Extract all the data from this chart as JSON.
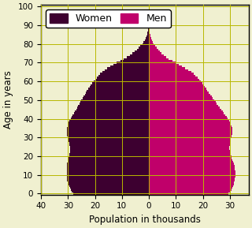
{
  "xlabel": "Population in thousands",
  "ylabel": "Age in years",
  "women_color": "#3d0030",
  "men_color": "#c0006a",
  "xlim": [
    -40,
    37
  ],
  "ylim": [
    -0.5,
    101
  ],
  "xticks": [
    -40,
    -30,
    -20,
    -10,
    0,
    10,
    20,
    30
  ],
  "xticklabels": [
    "40",
    "30",
    "20",
    "10",
    "0",
    "10",
    "20",
    "30"
  ],
  "yticks": [
    0,
    10,
    20,
    30,
    40,
    50,
    60,
    70,
    80,
    90,
    100
  ],
  "grid_color": "#b8b800",
  "background_color": "#f0f0d0",
  "legend_fontsize": 9,
  "women": [
    28.0,
    28.5,
    29.0,
    29.3,
    29.6,
    29.9,
    30.1,
    30.3,
    30.4,
    30.5,
    30.5,
    30.5,
    30.5,
    30.5,
    30.5,
    30.4,
    30.3,
    30.1,
    29.9,
    29.7,
    29.5,
    29.4,
    29.3,
    29.2,
    29.2,
    29.3,
    29.4,
    29.6,
    29.8,
    30.0,
    30.2,
    30.3,
    30.4,
    30.5,
    30.5,
    30.4,
    30.2,
    30.0,
    29.7,
    29.4,
    29.0,
    28.6,
    28.2,
    27.8,
    27.4,
    27.0,
    26.6,
    26.2,
    25.8,
    25.4,
    25.0,
    24.6,
    24.2,
    23.8,
    23.4,
    23.0,
    22.5,
    22.0,
    21.5,
    21.0,
    20.5,
    20.0,
    19.4,
    18.8,
    18.1,
    17.3,
    16.4,
    15.4,
    14.3,
    13.1,
    11.9,
    10.6,
    9.4,
    8.2,
    7.1,
    6.1,
    5.2,
    4.4,
    3.7,
    3.1,
    2.5,
    2.0,
    1.6,
    1.3,
    1.0,
    0.75,
    0.55,
    0.4,
    0.28,
    0.19,
    0.12,
    0.08,
    0.05,
    0.03,
    0.02,
    0.012,
    0.007,
    0.004,
    0.002,
    0.001,
    0.0005
  ],
  "men": [
    29.5,
    30.0,
    30.5,
    30.8,
    31.1,
    31.4,
    31.6,
    31.8,
    31.9,
    32.0,
    32.0,
    32.0,
    32.0,
    31.9,
    31.8,
    31.7,
    31.5,
    31.3,
    31.0,
    30.7,
    30.5,
    30.3,
    30.1,
    29.9,
    29.8,
    29.8,
    29.9,
    30.0,
    30.2,
    30.4,
    30.6,
    30.7,
    30.8,
    30.9,
    30.9,
    30.8,
    30.6,
    30.4,
    30.1,
    29.7,
    29.3,
    28.8,
    28.3,
    27.8,
    27.3,
    26.8,
    26.3,
    25.8,
    25.2,
    24.7,
    24.2,
    23.7,
    23.2,
    22.7,
    22.2,
    21.7,
    21.2,
    20.7,
    20.2,
    19.7,
    19.2,
    18.6,
    18.0,
    17.3,
    16.5,
    15.6,
    14.6,
    13.5,
    12.3,
    11.1,
    9.8,
    8.6,
    7.4,
    6.4,
    5.5,
    4.7,
    4.0,
    3.4,
    2.8,
    2.3,
    1.8,
    1.4,
    1.1,
    0.82,
    0.6,
    0.43,
    0.3,
    0.2,
    0.13,
    0.08,
    0.05,
    0.03,
    0.018,
    0.01,
    0.006,
    0.003,
    0.002,
    0.001,
    0.0005,
    0.0002,
    0.0001
  ]
}
